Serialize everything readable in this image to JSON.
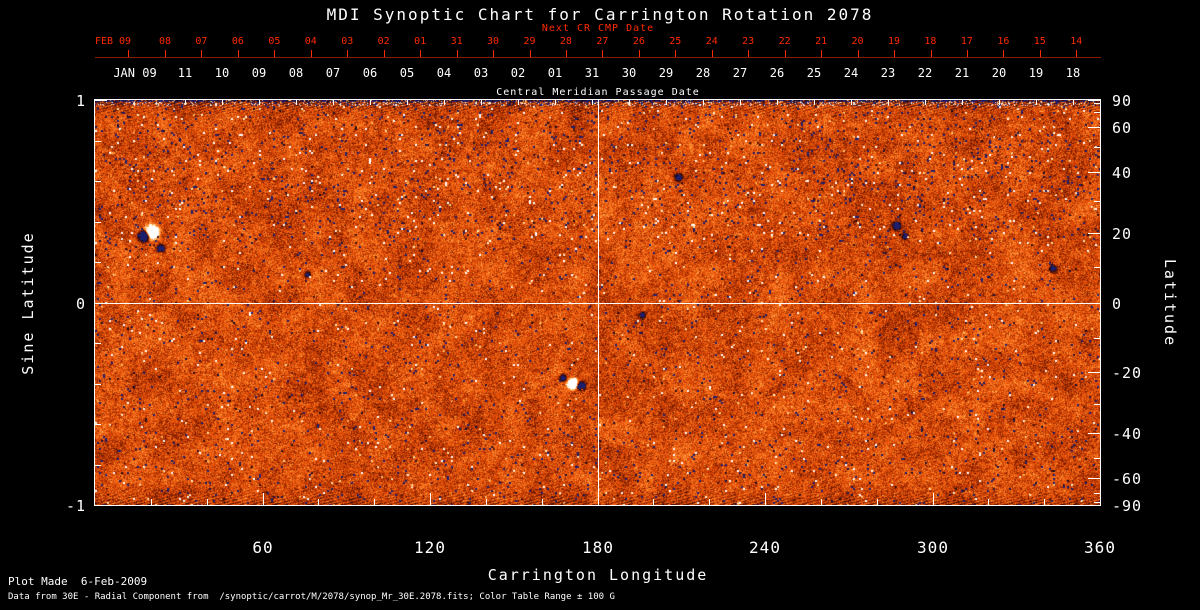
{
  "title": "MDI Synoptic Chart for Carrington Rotation 2078",
  "axes": {
    "next_cr": {
      "label": "Next CR CMP Date",
      "color": "#ff2a00",
      "first_tick": "FEB 09",
      "ticks": [
        "08",
        "07",
        "06",
        "05",
        "04",
        "03",
        "02",
        "01",
        "31",
        "30",
        "29",
        "28",
        "27",
        "26",
        "25",
        "24",
        "23",
        "22",
        "21",
        "20",
        "19",
        "18",
        "17",
        "16",
        "15",
        "14"
      ]
    },
    "cmp": {
      "label": "Central Meridian Passage Date",
      "first_tick": "JAN 09",
      "ticks": [
        "11",
        "10",
        "09",
        "08",
        "07",
        "06",
        "05",
        "04",
        "03",
        "02",
        "01",
        "31",
        "30",
        "29",
        "28",
        "27",
        "26",
        "25",
        "24",
        "23",
        "22",
        "21",
        "20",
        "19",
        "18"
      ]
    },
    "left": {
      "label": "Sine Latitude",
      "ticks": [
        {
          "value": 1,
          "label": "1"
        },
        {
          "value": 0,
          "label": "0"
        },
        {
          "value": -1,
          "label": "-1"
        }
      ]
    },
    "right": {
      "label": "Latitude",
      "ticks": [
        {
          "value": 90,
          "label": "90"
        },
        {
          "value": 60,
          "label": "60"
        },
        {
          "value": 40,
          "label": "40"
        },
        {
          "value": 20,
          "label": "20"
        },
        {
          "value": 0,
          "label": "0"
        },
        {
          "value": -20,
          "label": "-20"
        },
        {
          "value": -40,
          "label": "-40"
        },
        {
          "value": -60,
          "label": "-60"
        },
        {
          "value": -90,
          "label": "-90"
        }
      ]
    },
    "bottom": {
      "label": "Carrington Longitude",
      "ticks": [
        {
          "value": 60,
          "label": "60"
        },
        {
          "value": 120,
          "label": "120"
        },
        {
          "value": 180,
          "label": "180"
        },
        {
          "value": 240,
          "label": "240"
        },
        {
          "value": 300,
          "label": "300"
        },
        {
          "value": 360,
          "label": "360"
        }
      ]
    }
  },
  "footer": {
    "line1": "Plot Made  6-Feb-2009",
    "line2": "Data from 30E - Radial Component from  /synoptic/carrot/M/2078/synop_Mr_30E.2078.fits; Color Table Range ± 100 G"
  },
  "colors": {
    "background": "#000000",
    "foreground": "#ffffff",
    "next_cr_axis": "#ff2a00",
    "base_field_orange": "#e44a04"
  },
  "chart_data": {
    "type": "heatmap",
    "title": "MDI Synoptic Chart for Carrington Rotation 2078",
    "xlabel": "Carrington Longitude",
    "ylabel_left": "Sine Latitude",
    "ylabel_right": "Latitude",
    "xlim": [
      0,
      360
    ],
    "ylim_sine_latitude": [
      -1,
      1
    ],
    "x_ticks": [
      60,
      120,
      180,
      240,
      300,
      360
    ],
    "y_ticks_sine": [
      1,
      0,
      -1
    ],
    "y_ticks_latitude": [
      90,
      60,
      40,
      20,
      0,
      -20,
      -40,
      -60,
      -90
    ],
    "color_table_range_gauss": 100,
    "crosshair": {
      "longitude": 180,
      "sine_latitude": 0
    },
    "description": "Radial magnetic field synoptic map: fine salt-and-pepper magnetic noise on orange background, dark/blue striped polar band at top, scattered black negative-polarity speckles and a few bright white active regions",
    "palette_stops": [
      [
        0.0,
        30,
        30,
        110
      ],
      [
        0.05,
        8,
        8,
        48
      ],
      [
        0.14,
        40,
        10,
        6
      ],
      [
        0.3,
        118,
        26,
        0
      ],
      [
        0.5,
        228,
        74,
        4
      ],
      [
        0.7,
        255,
        138,
        46
      ],
      [
        0.85,
        255,
        202,
        104
      ],
      [
        1.0,
        255,
        255,
        255
      ]
    ],
    "texture": {
      "seed": 20780209,
      "base_noise_gauss": 20,
      "patch_noise_gauss": 13,
      "fine_noise_gauss": 11,
      "speckle_negative_prob": 0.02,
      "speckle_positive_prob": 0.009,
      "active_regions": [
        {
          "lon": 20.3,
          "sine_lat": 0.35,
          "sigma": 4.0,
          "amp": 420
        },
        {
          "lon": 17.5,
          "sine_lat": 0.33,
          "sigma": 3.2,
          "amp": -360
        },
        {
          "lon": 23.5,
          "sine_lat": 0.27,
          "sigma": 2.4,
          "amp": -220
        },
        {
          "lon": 76.0,
          "sine_lat": 0.14,
          "sigma": 2.0,
          "amp": -190
        },
        {
          "lon": 171.0,
          "sine_lat": -0.4,
          "sigma": 3.0,
          "amp": 380
        },
        {
          "lon": 174.0,
          "sine_lat": -0.41,
          "sigma": 2.6,
          "amp": -300
        },
        {
          "lon": 167.5,
          "sine_lat": -0.37,
          "sigma": 2.2,
          "amp": -220
        },
        {
          "lon": 209.0,
          "sine_lat": 0.62,
          "sigma": 2.6,
          "amp": -170
        },
        {
          "lon": 287.0,
          "sine_lat": 0.38,
          "sigma": 2.6,
          "amp": -210
        },
        {
          "lon": 290.0,
          "sine_lat": 0.33,
          "sigma": 2.0,
          "amp": -160
        },
        {
          "lon": 343.0,
          "sine_lat": 0.17,
          "sigma": 2.2,
          "amp": -180
        },
        {
          "lon": 196.0,
          "sine_lat": -0.06,
          "sigma": 2.0,
          "amp": -160
        }
      ]
    }
  }
}
